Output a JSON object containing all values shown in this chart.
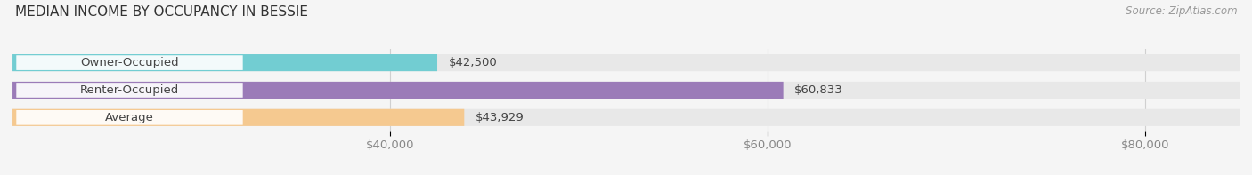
{
  "title": "MEDIAN INCOME BY OCCUPANCY IN BESSIE",
  "source": "Source: ZipAtlas.com",
  "categories": [
    "Owner-Occupied",
    "Renter-Occupied",
    "Average"
  ],
  "values": [
    42500,
    60833,
    43929
  ],
  "bar_colors": [
    "#72cdd2",
    "#9b7bb8",
    "#f5c990"
  ],
  "bar_bg_color": "#e8e8e8",
  "value_labels": [
    "$42,500",
    "$60,833",
    "$43,929"
  ],
  "xlim_min": 20000,
  "xlim_max": 85000,
  "xticks": [
    40000,
    60000,
    80000
  ],
  "xtick_labels": [
    "$40,000",
    "$60,000",
    "$80,000"
  ],
  "bar_height": 0.62,
  "title_fontsize": 11,
  "label_fontsize": 9.5,
  "value_fontsize": 9.5,
  "source_fontsize": 8.5,
  "bg_color": "#f5f5f5",
  "plot_bg_color": "#f5f5f5",
  "label_box_color": "#ffffff",
  "label_text_color": "#444444",
  "value_text_color": "#444444",
  "grid_color": "#d0d0d0",
  "tick_color": "#888888"
}
